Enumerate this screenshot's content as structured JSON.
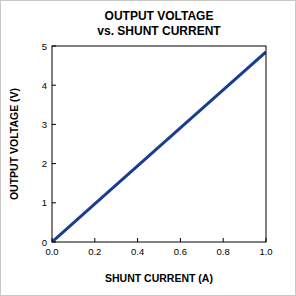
{
  "chart_data": {
    "type": "line",
    "title": "OUTPUT VOLTAGE",
    "subtitle": "vs. SHUNT CURRENT",
    "x_label": "SHUNT CURRENT (A)",
    "y_label": "OUTPUT VOLTAGE (V)",
    "x": [
      0,
      0.2,
      0.4,
      0.6,
      0.8,
      1.0
    ],
    "values": [
      0,
      0.97,
      1.94,
      2.91,
      3.88,
      4.85
    ],
    "color": "#1a3d8f",
    "xlim": [
      0,
      1.0
    ],
    "xticks": [
      {
        "value": 0,
        "label": "0.0"
      },
      0.2,
      0.4,
      0.6,
      0.8,
      {
        "value": 1.0,
        "label": "1.0"
      }
    ],
    "ylim": [
      0,
      5
    ],
    "yticks": [
      0,
      1,
      2,
      3,
      4,
      5
    ],
    "grid": false
  }
}
